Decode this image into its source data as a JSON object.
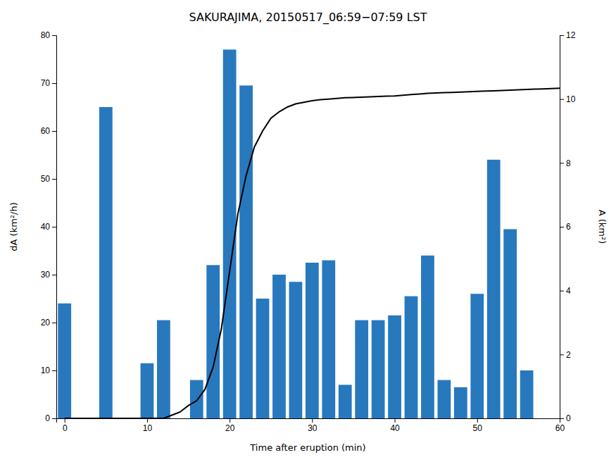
{
  "chart_data": {
    "type": "bar",
    "title": "SAKURAJIMA, 20150517_06:59−07:59 LST",
    "xlabel": "Time after eruption (min)",
    "ylabel": "dA (km²/h)",
    "y2label": "A (km²)",
    "series": [
      {
        "type": "bar",
        "color": "#2878BE",
        "x": [
          0,
          5,
          10,
          12,
          16,
          18,
          20,
          22,
          24,
          26,
          28,
          30,
          32,
          34,
          36,
          38,
          40,
          42,
          44,
          46,
          48,
          50,
          52,
          54,
          56,
          58
        ],
        "values": [
          24,
          65,
          11.5,
          20.5,
          8,
          32,
          77,
          69.5,
          25,
          30,
          28.5,
          32.5,
          33,
          7,
          20.5,
          20.5,
          21.5,
          25.5,
          34,
          8,
          6.5,
          26,
          54,
          39.5,
          10,
          0
        ]
      },
      {
        "type": "line",
        "color": "#000000",
        "axis": "y2",
        "x": [
          0,
          1,
          2,
          3,
          4,
          5,
          6,
          7,
          8,
          9,
          10,
          11,
          12,
          13,
          14,
          15,
          16,
          17,
          18,
          19,
          20,
          21,
          22,
          23,
          24,
          25,
          26,
          27,
          28,
          29,
          30,
          31,
          32,
          33,
          34,
          35,
          36,
          37,
          38,
          39,
          40,
          41,
          42,
          43,
          44,
          45,
          46,
          47,
          48,
          49,
          50,
          51,
          52,
          53,
          54,
          55,
          56,
          57,
          58,
          59,
          60
        ],
        "values": [
          0.0,
          0.0,
          0.0,
          0.0,
          0.0,
          0.0,
          0.0,
          0.0,
          0.0,
          0.0,
          0.0,
          0.0,
          0.0,
          0.1,
          0.2,
          0.4,
          0.55,
          0.9,
          1.6,
          2.8,
          4.6,
          6.4,
          7.6,
          8.5,
          9.0,
          9.4,
          9.6,
          9.75,
          9.85,
          9.9,
          9.95,
          9.98,
          10.0,
          10.02,
          10.04,
          10.05,
          10.06,
          10.07,
          10.08,
          10.09,
          10.1,
          10.12,
          10.14,
          10.16,
          10.18,
          10.19,
          10.2,
          10.21,
          10.22,
          10.23,
          10.24,
          10.25,
          10.26,
          10.27,
          10.28,
          10.29,
          10.3,
          10.31,
          10.32,
          10.33,
          10.34
        ]
      }
    ],
    "xlim": [
      -1,
      60
    ],
    "ylim": [
      0,
      80
    ],
    "y2lim": [
      0,
      12
    ],
    "xticks": [
      0,
      10,
      20,
      30,
      40,
      50,
      60
    ],
    "yticks": [
      0,
      10,
      20,
      30,
      40,
      50,
      60,
      70,
      80
    ],
    "y2ticks": [
      0,
      2,
      4,
      6,
      8,
      10,
      12
    ],
    "grid": false
  }
}
